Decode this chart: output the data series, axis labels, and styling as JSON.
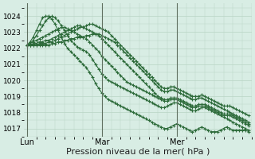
{
  "bg_color": "#d8ede4",
  "grid_color": "#b8d4c4",
  "line_color": "#2d6b3a",
  "xlabel": "Pression niveau de la mer( hPa )",
  "xlabel_fontsize": 8,
  "ylim": [
    1016.5,
    1024.8
  ],
  "yticks": [
    1017,
    1018,
    1019,
    1020,
    1021,
    1022,
    1023,
    1024
  ],
  "xtick_labels": [
    "Lun",
    "Mar",
    "Mer"
  ],
  "xtick_positions": [
    0,
    24,
    48
  ],
  "n_points": 72,
  "series": [
    [
      1022.2,
      1022.4,
      1022.7,
      1023.1,
      1023.5,
      1023.9,
      1024.0,
      1024.0,
      1023.8,
      1023.5,
      1023.1,
      1022.7,
      1022.3,
      1022.0,
      1021.8,
      1021.6,
      1021.4,
      1021.2,
      1021.0,
      1020.8,
      1020.5,
      1020.2,
      1019.8,
      1019.5,
      1019.2,
      1019.0,
      1018.8,
      1018.7,
      1018.6,
      1018.5,
      1018.4,
      1018.3,
      1018.2,
      1018.1,
      1018.0,
      1017.9,
      1017.8,
      1017.7,
      1017.6,
      1017.5,
      1017.4,
      1017.3,
      1017.2,
      1017.1,
      1017.0,
      1017.0,
      1017.1,
      1017.2,
      1017.3,
      1017.2,
      1017.1,
      1017.0,
      1016.9,
      1016.8,
      1016.9,
      1017.0,
      1017.1,
      1017.0,
      1016.9,
      1016.8,
      1016.8,
      1016.8,
      1016.9,
      1017.0,
      1017.1,
      1017.0,
      1016.9,
      1016.9,
      1016.9,
      1016.9,
      1016.9,
      1016.8
    ],
    [
      1022.2,
      1022.3,
      1022.5,
      1022.8,
      1023.1,
      1023.4,
      1023.7,
      1023.9,
      1024.0,
      1023.9,
      1023.7,
      1023.4,
      1023.1,
      1022.8,
      1022.5,
      1022.3,
      1022.1,
      1022.0,
      1021.9,
      1021.8,
      1021.6,
      1021.3,
      1021.0,
      1020.7,
      1020.4,
      1020.2,
      1020.0,
      1019.9,
      1019.8,
      1019.7,
      1019.6,
      1019.5,
      1019.4,
      1019.3,
      1019.2,
      1019.1,
      1019.0,
      1018.9,
      1018.8,
      1018.7,
      1018.6,
      1018.5,
      1018.4,
      1018.3,
      1018.3,
      1018.4,
      1018.5,
      1018.6,
      1018.6,
      1018.5,
      1018.4,
      1018.3,
      1018.2,
      1018.1,
      1018.1,
      1018.2,
      1018.3,
      1018.3,
      1018.2,
      1018.1,
      1018.0,
      1017.9,
      1017.8,
      1017.7,
      1017.6,
      1017.5,
      1017.4,
      1017.3,
      1017.2,
      1017.1,
      1017.0,
      1016.9
    ],
    [
      1022.2,
      1022.3,
      1022.4,
      1022.5,
      1022.6,
      1022.7,
      1022.8,
      1022.9,
      1023.0,
      1023.1,
      1023.2,
      1023.3,
      1023.3,
      1023.2,
      1023.1,
      1023.0,
      1022.9,
      1022.8,
      1022.7,
      1022.6,
      1022.4,
      1022.2,
      1022.0,
      1021.8,
      1021.5,
      1021.3,
      1021.1,
      1020.9,
      1020.7,
      1020.5,
      1020.3,
      1020.1,
      1019.9,
      1019.8,
      1019.7,
      1019.6,
      1019.5,
      1019.4,
      1019.3,
      1019.2,
      1019.1,
      1019.0,
      1018.9,
      1018.8,
      1018.7,
      1018.7,
      1018.8,
      1018.8,
      1018.8,
      1018.7,
      1018.6,
      1018.5,
      1018.4,
      1018.3,
      1018.3,
      1018.4,
      1018.4,
      1018.4,
      1018.3,
      1018.2,
      1018.1,
      1018.0,
      1017.9,
      1017.8,
      1017.8,
      1017.8,
      1017.7,
      1017.6,
      1017.5,
      1017.4,
      1017.3,
      1017.2
    ],
    [
      1022.2,
      1022.2,
      1022.3,
      1022.3,
      1022.4,
      1022.4,
      1022.5,
      1022.5,
      1022.6,
      1022.7,
      1022.8,
      1022.9,
      1023.0,
      1023.1,
      1023.2,
      1023.3,
      1023.4,
      1023.4,
      1023.3,
      1023.2,
      1023.1,
      1023.0,
      1022.9,
      1022.8,
      1022.6,
      1022.4,
      1022.2,
      1022.0,
      1021.8,
      1021.6,
      1021.4,
      1021.2,
      1021.0,
      1020.8,
      1020.6,
      1020.4,
      1020.2,
      1020.0,
      1019.8,
      1019.6,
      1019.4,
      1019.2,
      1019.0,
      1018.9,
      1018.8,
      1018.8,
      1018.9,
      1018.9,
      1018.9,
      1018.8,
      1018.7,
      1018.6,
      1018.5,
      1018.4,
      1018.4,
      1018.5,
      1018.5,
      1018.5,
      1018.4,
      1018.3,
      1018.2,
      1018.1,
      1018.0,
      1017.9,
      1017.9,
      1017.9,
      1017.8,
      1017.7,
      1017.6,
      1017.5,
      1017.4,
      1017.3
    ],
    [
      1022.2,
      1022.2,
      1022.2,
      1022.2,
      1022.3,
      1022.3,
      1022.3,
      1022.4,
      1022.4,
      1022.5,
      1022.6,
      1022.7,
      1022.8,
      1022.9,
      1023.0,
      1023.1,
      1023.2,
      1023.3,
      1023.3,
      1023.4,
      1023.5,
      1023.5,
      1023.4,
      1023.3,
      1023.2,
      1023.1,
      1023.0,
      1022.8,
      1022.6,
      1022.4,
      1022.2,
      1022.0,
      1021.8,
      1021.6,
      1021.4,
      1021.2,
      1021.0,
      1020.8,
      1020.6,
      1020.4,
      1020.2,
      1020.0,
      1019.8,
      1019.6,
      1019.5,
      1019.5,
      1019.6,
      1019.6,
      1019.5,
      1019.4,
      1019.3,
      1019.2,
      1019.1,
      1019.0,
      1019.0,
      1019.0,
      1019.1,
      1019.0,
      1018.9,
      1018.8,
      1018.7,
      1018.6,
      1018.5,
      1018.4,
      1018.4,
      1018.4,
      1018.3,
      1018.2,
      1018.1,
      1018.0,
      1017.9,
      1017.8
    ],
    [
      1022.2,
      1022.2,
      1022.2,
      1022.2,
      1022.2,
      1022.2,
      1022.2,
      1022.2,
      1022.3,
      1022.3,
      1022.4,
      1022.4,
      1022.5,
      1022.5,
      1022.6,
      1022.6,
      1022.7,
      1022.7,
      1022.7,
      1022.8,
      1022.8,
      1022.9,
      1022.9,
      1022.9,
      1022.8,
      1022.7,
      1022.6,
      1022.5,
      1022.4,
      1022.2,
      1022.0,
      1021.8,
      1021.6,
      1021.4,
      1021.2,
      1021.0,
      1020.8,
      1020.6,
      1020.4,
      1020.2,
      1020.0,
      1019.8,
      1019.6,
      1019.4,
      1019.3,
      1019.3,
      1019.4,
      1019.4,
      1019.3,
      1019.2,
      1019.1,
      1019.0,
      1018.9,
      1018.8,
      1018.8,
      1018.9,
      1018.9,
      1018.8,
      1018.7,
      1018.6,
      1018.5,
      1018.4,
      1018.3,
      1018.2,
      1018.1,
      1018.0,
      1017.9,
      1017.8,
      1017.7,
      1017.6,
      1017.5,
      1017.4
    ]
  ]
}
